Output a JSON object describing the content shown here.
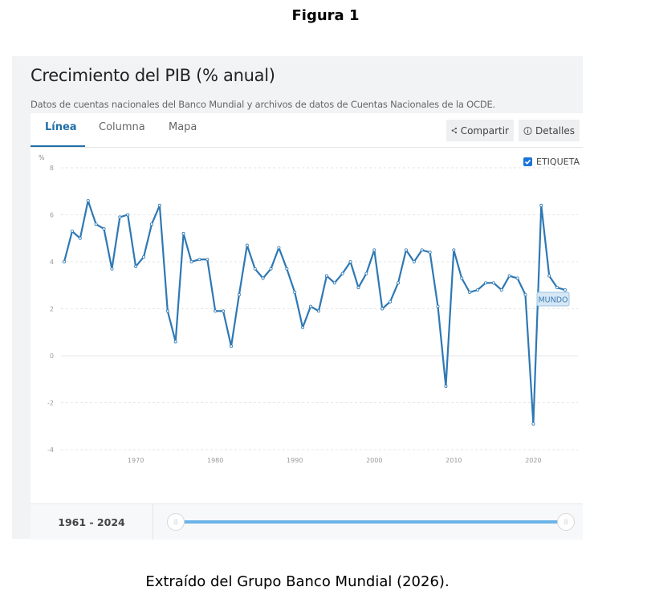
{
  "figure": {
    "label": "Figura 1",
    "caption": "Extraído del Grupo Banco Mundial (2026)."
  },
  "card": {
    "title": "Crecimiento del PIB (% anual)",
    "subtitle": "Datos de cuentas nacionales del Banco Mundial y archivos de datos de Cuentas Nacionales de la OCDE."
  },
  "tabs": [
    {
      "label": "Línea",
      "active": true
    },
    {
      "label": "Columna",
      "active": false
    },
    {
      "label": "Mapa",
      "active": false
    }
  ],
  "actions": {
    "share_label": "Compartir",
    "details_label": "Detalles"
  },
  "legend": {
    "checkbox_label": "ETIQUETA",
    "checked": true
  },
  "series_label": "MUNDO",
  "range": {
    "label": "1961 - 2024",
    "start": 1961,
    "end": 2024
  },
  "colors": {
    "line": "#2e78b4",
    "accent": "#1f6fa8",
    "slider": "#6bb3e6",
    "checkbox": "#1a73d9"
  },
  "chart_data": {
    "type": "line",
    "title": "Crecimiento del PIB (% anual)",
    "xlabel": "",
    "ylabel": "%",
    "ylim": [
      -4,
      8
    ],
    "xlim": [
      1961,
      2024
    ],
    "y_ticks": [
      8,
      6,
      4,
      2,
      0,
      -2,
      -4
    ],
    "x_ticks": [
      1970,
      1980,
      1990,
      2000,
      2010,
      2020
    ],
    "grid": true,
    "legend_position": "top-right",
    "series": [
      {
        "name": "MUNDO",
        "x": [
          1961,
          1962,
          1963,
          1964,
          1965,
          1966,
          1967,
          1968,
          1969,
          1970,
          1971,
          1972,
          1973,
          1974,
          1975,
          1976,
          1977,
          1978,
          1979,
          1980,
          1981,
          1982,
          1983,
          1984,
          1985,
          1986,
          1987,
          1988,
          1989,
          1990,
          1991,
          1992,
          1993,
          1994,
          1995,
          1996,
          1997,
          1998,
          1999,
          2000,
          2001,
          2002,
          2003,
          2004,
          2005,
          2006,
          2007,
          2008,
          2009,
          2010,
          2011,
          2012,
          2013,
          2014,
          2015,
          2016,
          2017,
          2018,
          2019,
          2020,
          2021,
          2022,
          2023,
          2024
        ],
        "values": [
          4.0,
          5.3,
          5.0,
          6.6,
          5.6,
          5.4,
          3.7,
          5.9,
          6.0,
          3.8,
          4.2,
          5.6,
          6.4,
          1.9,
          0.6,
          5.2,
          4.0,
          4.1,
          4.1,
          1.9,
          1.9,
          0.4,
          2.6,
          4.7,
          3.7,
          3.3,
          3.7,
          4.6,
          3.7,
          2.7,
          1.2,
          2.1,
          1.9,
          3.4,
          3.1,
          3.5,
          4.0,
          2.9,
          3.5,
          4.5,
          2.0,
          2.3,
          3.1,
          4.5,
          4.0,
          4.5,
          4.4,
          2.1,
          -1.3,
          4.5,
          3.3,
          2.7,
          2.8,
          3.1,
          3.1,
          2.8,
          3.4,
          3.3,
          2.6,
          -2.9,
          6.4,
          3.4,
          2.9,
          2.8
        ]
      }
    ]
  }
}
